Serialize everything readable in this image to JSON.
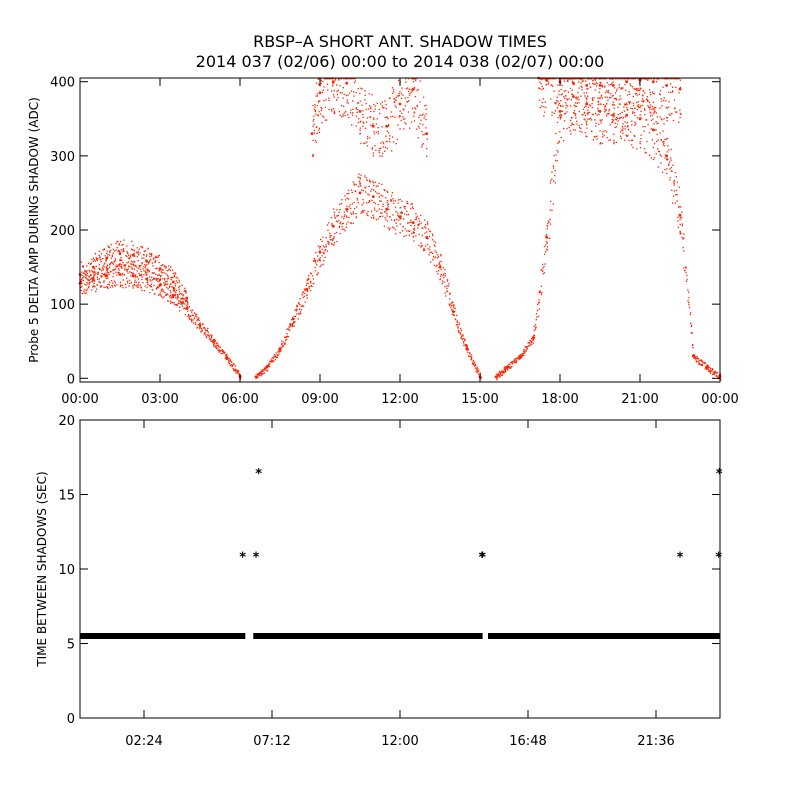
{
  "figure": {
    "title_line1": "RBSP–A SHORT ANT. SHADOW TIMES",
    "title_line2": "2014 037 (02/06) 00:00 to 2014 038 (02/07) 00:00",
    "colors": {
      "background": "#ffffff",
      "axes": "#000000",
      "amp_points": "#ff2200",
      "dt_points": "#000000"
    }
  },
  "chart_data": [
    {
      "type": "scatter",
      "name": "shadow-amplitude",
      "title": "",
      "xlabel": "",
      "ylabel": "Probe 5 DELTA AMP DURING SHADOW (ADC)",
      "xlim": [
        0,
        24
      ],
      "ylim": [
        -5,
        405
      ],
      "x_unit": "hours",
      "xticks": [
        0,
        3,
        6,
        9,
        12,
        15,
        18,
        21,
        24
      ],
      "xtick_labels": [
        "00:00",
        "03:00",
        "06:00",
        "09:00",
        "12:00",
        "15:00",
        "18:00",
        "21:00",
        "00:00"
      ],
      "yticks": [
        0,
        100,
        200,
        300,
        400
      ],
      "ytick_labels": [
        "0",
        "100",
        "200",
        "300",
        "400"
      ],
      "series": [
        {
          "name": "central band",
          "x": [
            0.0,
            0.5,
            1.0,
            1.5,
            2.0,
            2.5,
            3.0,
            3.5,
            4.0,
            4.5,
            5.0,
            5.5,
            6.0
          ],
          "y": [
            128,
            133,
            138,
            140,
            138,
            134,
            126,
            112,
            94,
            72,
            50,
            28,
            3
          ]
        },
        {
          "name": "upper band",
          "x": [
            0.0,
            0.5,
            1.0,
            1.5,
            2.0,
            2.5,
            3.0,
            3.5,
            4.0
          ],
          "y": [
            140,
            150,
            162,
            168,
            166,
            158,
            148,
            130,
            108
          ]
        },
        {
          "name": "central band",
          "x": [
            6.6,
            7.0,
            7.5,
            8.0,
            8.5,
            9.0,
            9.5,
            10.0,
            10.5,
            11.0,
            11.5,
            12.0,
            12.5,
            13.0,
            13.5,
            14.0,
            14.5,
            15.0
          ],
          "y": [
            2,
            15,
            40,
            80,
            120,
            170,
            205,
            228,
            250,
            245,
            228,
            218,
            210,
            190,
            150,
            90,
            40,
            2
          ]
        },
        {
          "name": "upper band",
          "x": [
            8.7,
            9.0,
            9.5,
            10.0,
            10.5,
            11.0,
            11.5,
            12.0,
            12.5,
            13.0
          ],
          "y": [
            330,
            385,
            400,
            398,
            360,
            340,
            340,
            370,
            390,
            330
          ]
        },
        {
          "name": "central band",
          "x": [
            15.6,
            16.0,
            16.5,
            17.0,
            17.5,
            18.0,
            18.5,
            19.0,
            19.5,
            20.0,
            20.5,
            21.0,
            21.5,
            22.0,
            22.5,
            23.0,
            23.5,
            24.0
          ],
          "y": [
            2,
            15,
            30,
            55,
            190,
            360,
            380,
            370,
            360,
            355,
            355,
            350,
            335,
            300,
            220,
            30,
            15,
            2
          ]
        },
        {
          "name": "upper band",
          "x": [
            17.2,
            17.5,
            18.0,
            18.5,
            19.0,
            19.5,
            20.0,
            20.5,
            21.0,
            21.5,
            22.0,
            22.5
          ],
          "y": [
            405,
            402,
            400,
            398,
            395,
            395,
            395,
            400,
            402,
            400,
            395,
            390
          ]
        }
      ]
    },
    {
      "type": "scatter",
      "name": "time-between-shadows",
      "title": "",
      "xlabel": "",
      "ylabel": "TIME BETWEEN SHADOWS (SEC)",
      "xlim": [
        0,
        24
      ],
      "ylim": [
        0,
        20
      ],
      "x_unit": "hours",
      "xticks": [
        2.4,
        7.2,
        12.0,
        16.8,
        21.6
      ],
      "xtick_labels": [
        "02:24",
        "07:12",
        "12:00",
        "16:48",
        "21:36"
      ],
      "yticks": [
        0,
        5,
        10,
        15,
        20
      ],
      "ytick_labels": [
        "0",
        "5",
        "10",
        "15",
        "20"
      ],
      "baseline": {
        "y": 5.5,
        "segments": [
          [
            0.0,
            6.2
          ],
          [
            6.5,
            15.1
          ],
          [
            15.3,
            24.0
          ]
        ]
      },
      "points": [
        {
          "x": 6.1,
          "y": 10.9
        },
        {
          "x": 6.6,
          "y": 10.9
        },
        {
          "x": 6.7,
          "y": 16.5
        },
        {
          "x": 15.07,
          "y": 10.9
        },
        {
          "x": 15.1,
          "y": 10.9
        },
        {
          "x": 22.5,
          "y": 10.9
        },
        {
          "x": 23.95,
          "y": 10.9
        },
        {
          "x": 23.97,
          "y": 16.5
        }
      ],
      "marker": "*"
    }
  ]
}
